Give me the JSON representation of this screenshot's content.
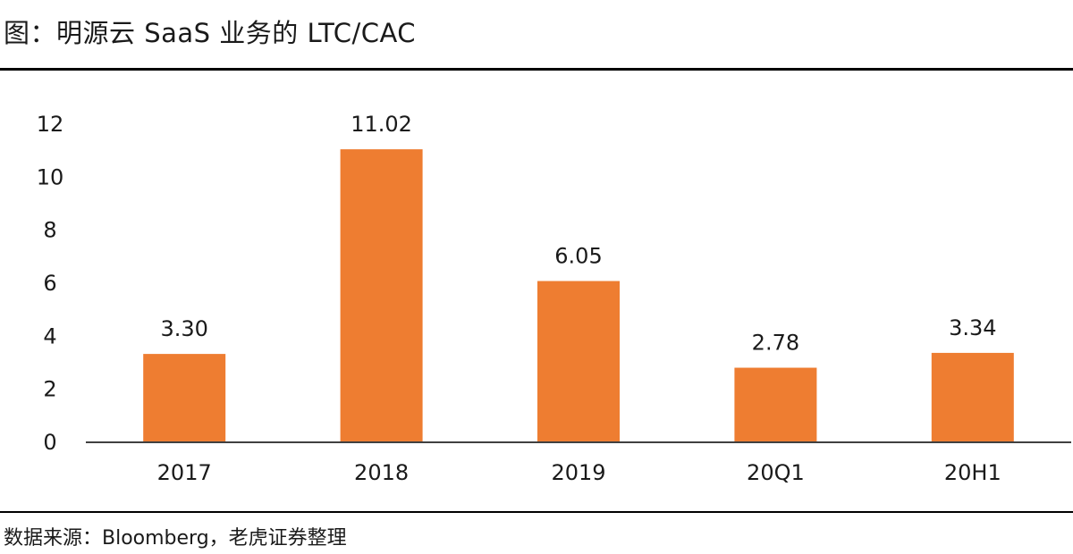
{
  "title": "图：明源云 SaaS 业务的 LTC/CAC",
  "source": "数据来源：Bloomberg，老虎证券整理",
  "colors": {
    "bar": "#ee7d31",
    "axis": "#404040"
  },
  "chart_data": {
    "type": "bar",
    "title": "明源云 SaaS 业务的 LTC/CAC",
    "xlabel": "",
    "ylabel": "",
    "categories": [
      "2017",
      "2018",
      "2019",
      "20Q1",
      "20H1"
    ],
    "values": [
      3.3,
      11.02,
      6.05,
      2.78,
      3.34
    ],
    "value_labels": [
      "3.30",
      "11.02",
      "6.05",
      "2.78",
      "3.34"
    ],
    "ylim": [
      0,
      12
    ],
    "yticks": [
      0,
      2,
      4,
      6,
      8,
      10,
      12
    ],
    "grid": false,
    "legend": "none"
  }
}
